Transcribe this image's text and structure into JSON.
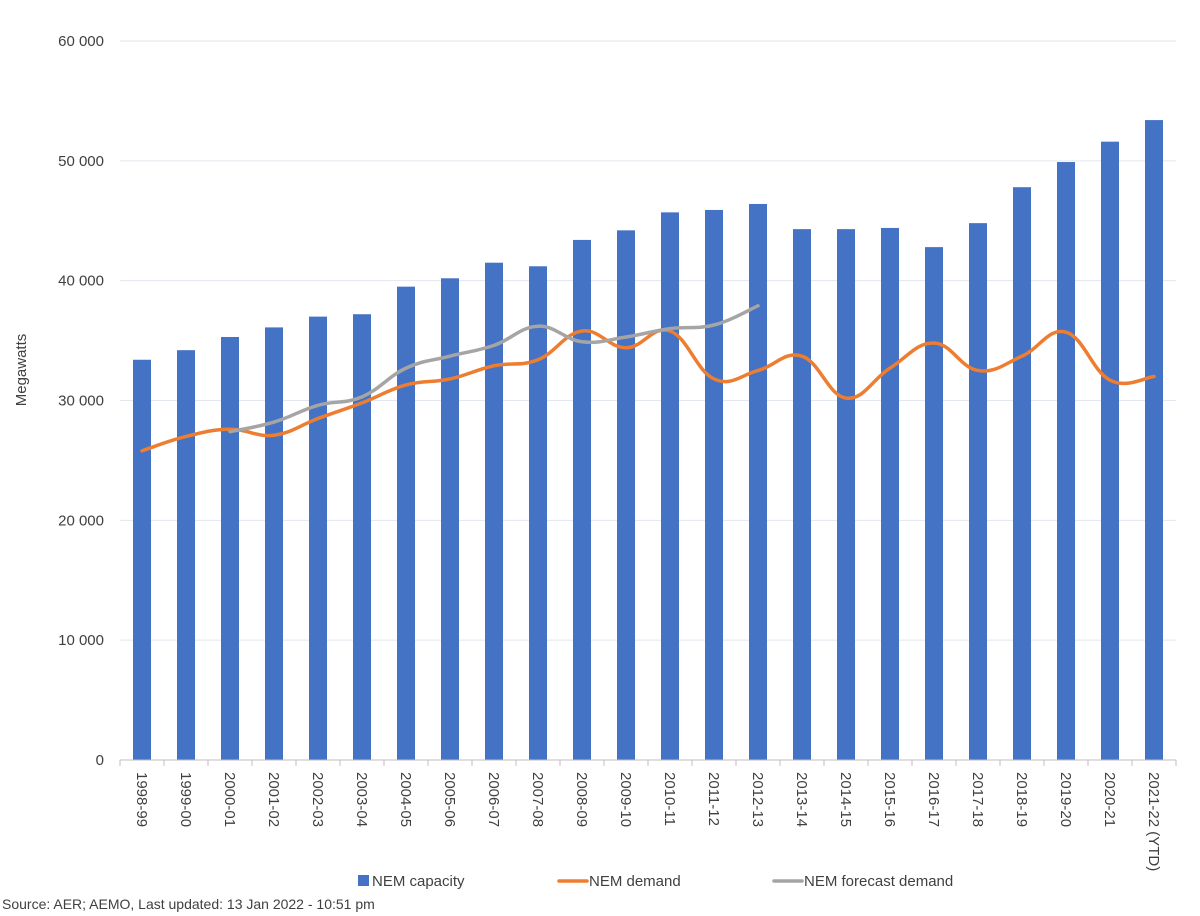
{
  "chart_data": {
    "type": "bar",
    "title": "",
    "xlabel": "",
    "ylabel": "Megawatts",
    "ylim": [
      0,
      60000
    ],
    "yticks": [
      "0",
      "10 000",
      "20 000",
      "30 000",
      "40 000",
      "50 000",
      "60 000"
    ],
    "ytick_values": [
      0,
      10000,
      20000,
      30000,
      40000,
      50000,
      60000
    ],
    "grid": true,
    "legend_position": "bottom",
    "categories": [
      "1998-99",
      "1999-00",
      "2000-01",
      "2001-02",
      "2002-03",
      "2003-04",
      "2004-05",
      "2005-06",
      "2006-07",
      "2007-08",
      "2008-09",
      "2009-10",
      "2010-11",
      "2011-12",
      "2012-13",
      "2013-14",
      "2014-15",
      "2015-16",
      "2016-17",
      "2017-18",
      "2018-19",
      "2019-20",
      "2020-21",
      "2021-22 (YTD)"
    ],
    "series": [
      {
        "name": "NEM capacity",
        "kind": "bar",
        "color": "#4472c4",
        "values": [
          33400,
          34200,
          35300,
          36100,
          37000,
          37200,
          39500,
          40200,
          41500,
          41200,
          43400,
          44200,
          45700,
          45900,
          46400,
          44300,
          44300,
          44400,
          42800,
          44800,
          47800,
          49900,
          51600,
          53400
        ]
      },
      {
        "name": "NEM demand",
        "kind": "line",
        "color": "#ed7d31",
        "values": [
          25800,
          27000,
          27600,
          27100,
          28500,
          29800,
          31300,
          31800,
          32900,
          33400,
          35800,
          34400,
          35800,
          31800,
          32500,
          33700,
          30200,
          32700,
          34800,
          32500,
          33700,
          35700,
          31700,
          32000
        ]
      },
      {
        "name": "NEM forecast demand",
        "kind": "line",
        "color": "#a5a5a5",
        "values": [
          null,
          null,
          27400,
          28200,
          29600,
          30300,
          32700,
          33700,
          34600,
          36200,
          34900,
          35300,
          36000,
          36300,
          37900,
          null,
          null,
          null,
          null,
          null,
          null,
          null,
          null,
          null
        ]
      }
    ]
  },
  "footer": {
    "source": "Source: AER; AEMO, Last updated: 13 Jan 2022 - 10:51 pm"
  }
}
